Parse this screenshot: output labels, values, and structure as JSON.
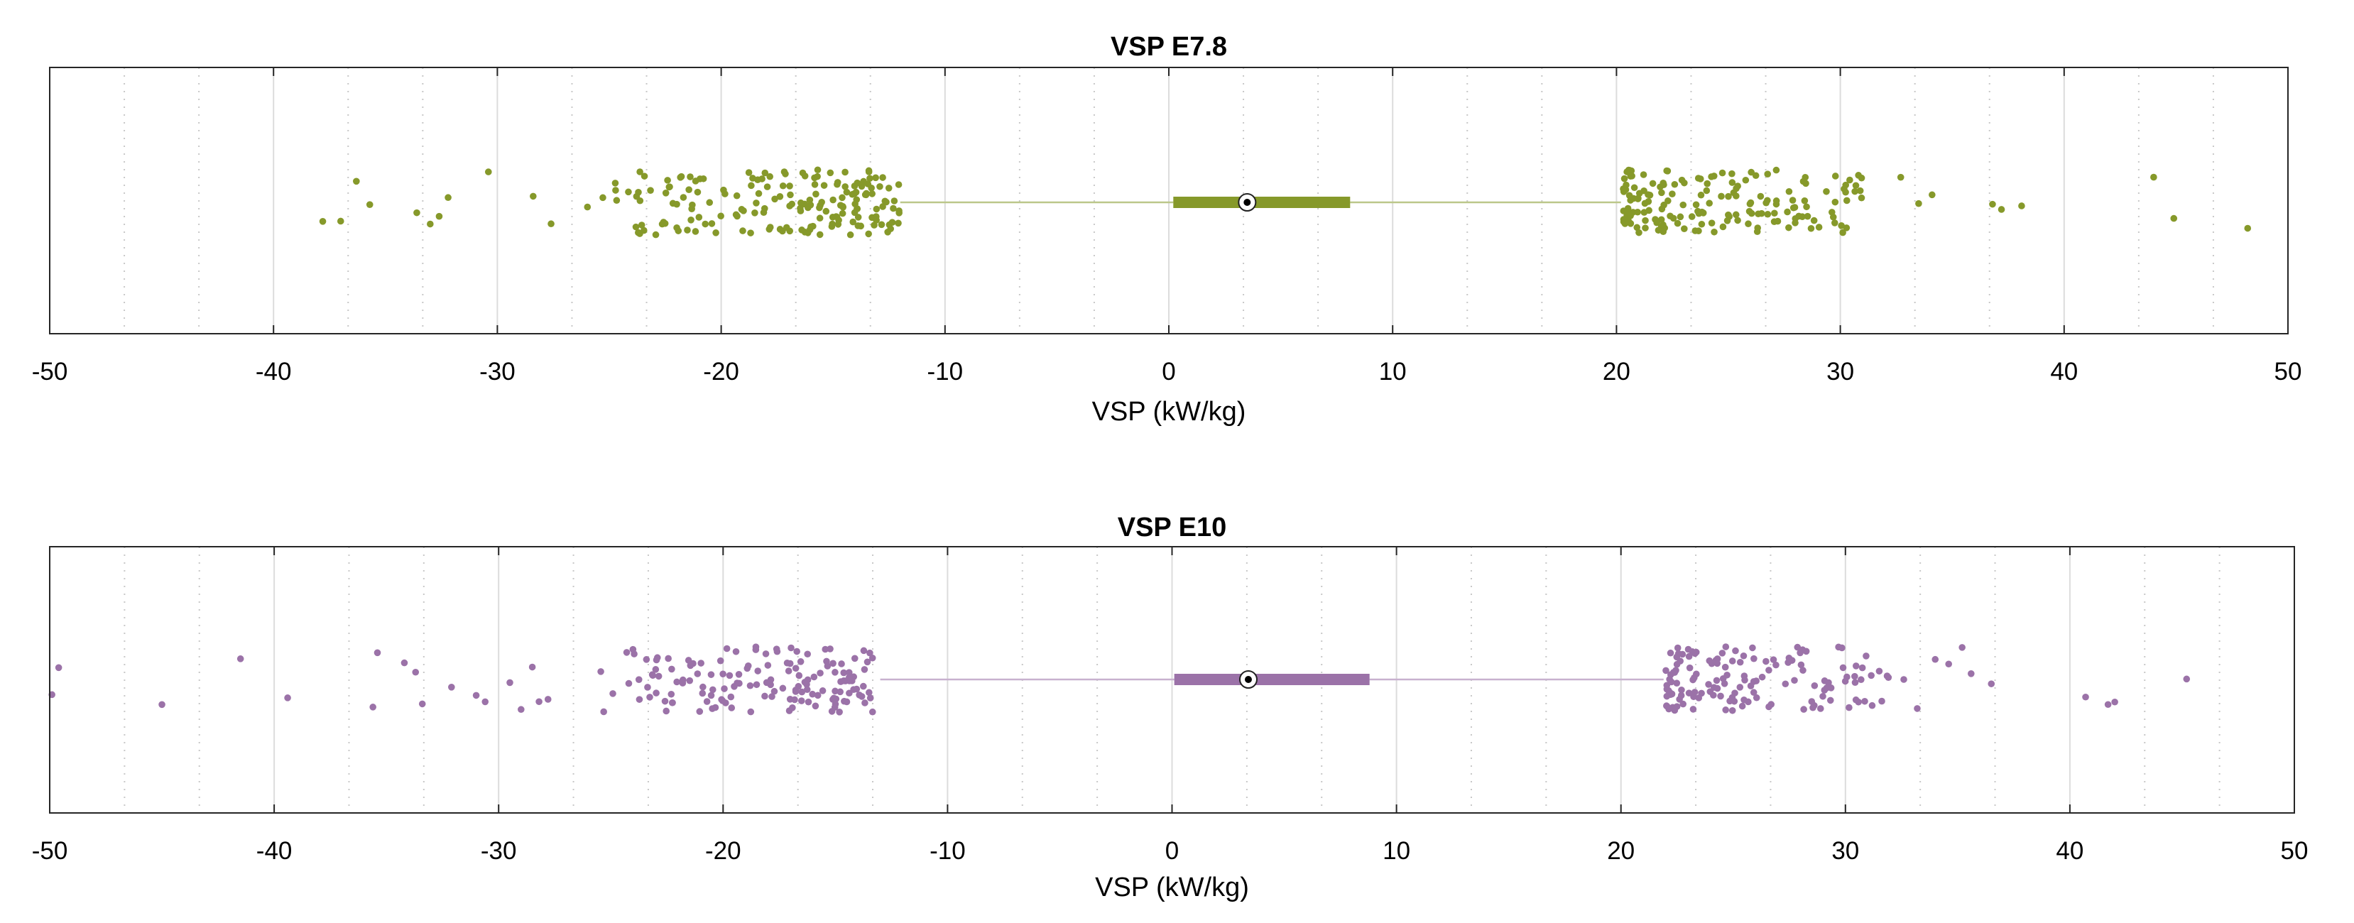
{
  "figure": {
    "layout": "two stacked horizontal box plots with jittered outliers"
  },
  "chart_data": [
    {
      "type": "boxplot",
      "orientation": "horizontal",
      "title": "VSP E7.8",
      "xlabel": "VSP (kW/kg)",
      "ylabel": "",
      "xlim": [
        -50,
        50
      ],
      "xticks": [
        -50,
        -40,
        -30,
        -20,
        -10,
        0,
        10,
        20,
        30,
        40,
        50
      ],
      "xtick_labels": [
        "-50",
        "-40",
        "-30",
        "-20",
        "-10",
        "0",
        "10",
        "20",
        "30",
        "40",
        "50"
      ],
      "minor_ticks": 2,
      "grid": true,
      "color": "#86992a",
      "box": {
        "q1": 0.2,
        "median": 3.5,
        "q3": 8.1,
        "whisker_low": -12,
        "whisker_high": 20.2
      },
      "outliers": {
        "approx_count": 370,
        "low": {
          "min": -38,
          "max": -12,
          "dense_from": -26.5
        },
        "high": {
          "min": 20.3,
          "max": 48.2,
          "dense_to": 31
        },
        "sparse_values": [
          -37.8,
          -37,
          -36.3,
          -35.7,
          -33.6,
          -33,
          -32.6,
          -32.2,
          -30.4,
          -28.4,
          -27.6,
          32.7,
          33.5,
          34.1,
          36.8,
          37.2,
          38.1,
          44,
          44.9,
          48.2
        ]
      }
    },
    {
      "type": "boxplot",
      "orientation": "horizontal",
      "title": "VSP E10",
      "xlabel": "VSP (kW/kg)",
      "ylabel": "",
      "xlim": [
        -50,
        50
      ],
      "xticks": [
        -50,
        -40,
        -30,
        -20,
        -10,
        0,
        10,
        20,
        30,
        40,
        50
      ],
      "xtick_labels": [
        "-50",
        "-40",
        "-30",
        "-20",
        "-10",
        "0",
        "10",
        "20",
        "30",
        "40",
        "50"
      ],
      "minor_ticks": 2,
      "grid": true,
      "color": "#9b72a8",
      "box": {
        "q1": 0.1,
        "median": 3.4,
        "q3": 8.8,
        "whisker_low": -13,
        "whisker_high": 21.9
      },
      "outliers": {
        "approx_count": 320,
        "low": {
          "min": -50,
          "max": -13.2,
          "dense_from": -26.5
        },
        "high": {
          "min": 22,
          "max": 45.2,
          "dense_to": 32
        },
        "sparse_values": [
          -49.9,
          -49.6,
          -45,
          -41.5,
          -39.4,
          -35.6,
          -35.4,
          -34.2,
          -33.7,
          -33.4,
          -32.1,
          -31,
          -30.6,
          -29.5,
          -29,
          -28.5,
          -28.2,
          -27.8,
          32.6,
          33.2,
          34,
          34.6,
          35.2,
          35.6,
          36.5,
          40.7,
          41.7,
          42,
          45.2
        ]
      }
    }
  ]
}
